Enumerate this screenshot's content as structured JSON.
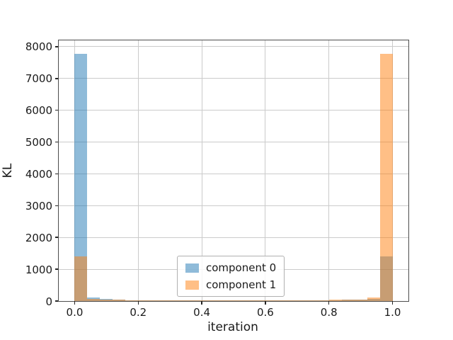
{
  "figure": {
    "background": "#ffffff"
  },
  "chart_data": {
    "type": "bar",
    "subtype": "histogram",
    "title": "",
    "xlabel": "iteration",
    "ylabel": "KL",
    "xlim": [
      -0.05,
      1.05
    ],
    "ylim": [
      0,
      8200
    ],
    "grid": true,
    "grid_color": "#cbcbcb",
    "spine_color": "#4d4d4d",
    "text_color": "#1a1a1a",
    "x_ticks": [
      0.0,
      0.2,
      0.4,
      0.6,
      0.8,
      1.0
    ],
    "x_tick_labels": [
      "0.0",
      "0.2",
      "0.4",
      "0.6",
      "0.8",
      "1.0"
    ],
    "y_ticks": [
      0,
      1000,
      2000,
      3000,
      4000,
      5000,
      6000,
      7000,
      8000
    ],
    "y_tick_labels": [
      "0",
      "1000",
      "2000",
      "3000",
      "4000",
      "5000",
      "6000",
      "7000",
      "8000"
    ],
    "bins": {
      "start": 0.0,
      "width": 0.04,
      "count": 25
    },
    "series": [
      {
        "name": "component 0",
        "color": "#1f77b4",
        "alpha": 0.5,
        "values": [
          7780,
          110,
          60,
          40,
          30,
          28,
          26,
          25,
          25,
          24,
          24,
          24,
          24,
          24,
          25,
          25,
          26,
          27,
          28,
          30,
          32,
          35,
          45,
          60,
          1400
        ]
      },
      {
        "name": "component 1",
        "color": "#ff7f0e",
        "alpha": 0.5,
        "values": [
          1400,
          65,
          55,
          38,
          28,
          26,
          25,
          24,
          24,
          24,
          24,
          24,
          24,
          24,
          25,
          25,
          26,
          28,
          30,
          32,
          35,
          40,
          55,
          110,
          7780
        ]
      }
    ],
    "legend": {
      "position": "lower center",
      "labels": [
        "component 0",
        "component 1"
      ]
    }
  }
}
